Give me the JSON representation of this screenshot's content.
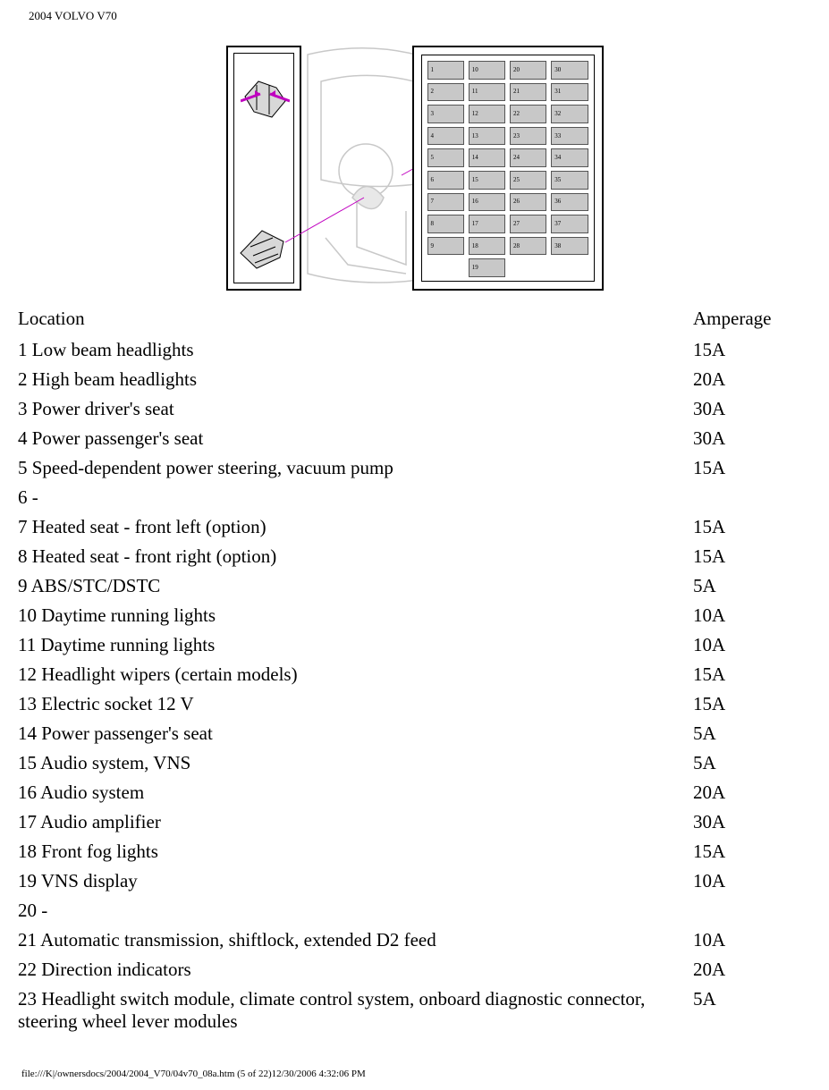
{
  "header_title": "2004 VOLVO V70",
  "footer_text": "file:///K|/ownersdocs/2004/2004_V70/04v70_08a.htm (5 of 22)12/30/2006 4:32:06 PM",
  "columns": {
    "location": "Location",
    "amperage": "Amperage"
  },
  "fuse_box": {
    "rows": 10,
    "cols": 4,
    "col_starts": [
      1,
      10,
      20,
      30
    ],
    "skip": [
      [
        0,
        9
      ],
      [
        2,
        9
      ],
      [
        3,
        9
      ]
    ]
  },
  "fuses": [
    {
      "num": "1",
      "desc": "Low beam headlights",
      "amp": "15A"
    },
    {
      "num": "2",
      "desc": "High beam headlights",
      "amp": "20A"
    },
    {
      "num": "3",
      "desc": "Power driver's seat",
      "amp": "30A"
    },
    {
      "num": "4",
      "desc": "Power passenger's seat",
      "amp": "30A"
    },
    {
      "num": "5",
      "desc": "Speed-dependent power steering, vacuum pump",
      "amp": "15A"
    },
    {
      "num": "6",
      "desc": "-",
      "amp": ""
    },
    {
      "num": "7",
      "desc": "Heated seat - front left (option)",
      "amp": "15A"
    },
    {
      "num": "8",
      "desc": "Heated seat - front right (option)",
      "amp": "15A"
    },
    {
      "num": "9",
      "desc": "ABS/STC/DSTC",
      "amp": "5A"
    },
    {
      "num": "10",
      "desc": "Daytime running lights",
      "amp": "10A"
    },
    {
      "num": "11",
      "desc": "Daytime running lights",
      "amp": "10A"
    },
    {
      "num": "12",
      "desc": "Headlight wipers (certain models)",
      "amp": "15A"
    },
    {
      "num": "13",
      "desc": "Electric socket 12 V",
      "amp": "15A"
    },
    {
      "num": "14",
      "desc": "Power passenger's seat",
      "amp": "5A"
    },
    {
      "num": "15",
      "desc": "Audio system, VNS",
      "amp": "5A"
    },
    {
      "num": "16",
      "desc": "Audio system",
      "amp": "20A"
    },
    {
      "num": "17",
      "desc": "Audio amplifier",
      "amp": "30A"
    },
    {
      "num": "18",
      "desc": "Front fog lights",
      "amp": "15A"
    },
    {
      "num": "19",
      "desc": "VNS display",
      "amp": "10A"
    },
    {
      "num": "20",
      "desc": "-",
      "amp": ""
    },
    {
      "num": "21",
      "desc": "Automatic transmission, shiftlock, extended D2 feed",
      "amp": "10A"
    },
    {
      "num": "22",
      "desc": "Direction indicators",
      "amp": "20A"
    },
    {
      "num": "23",
      "desc": "Headlight switch module, climate control system, onboard diagnostic connector, steering wheel lever modules",
      "amp": "5A"
    }
  ]
}
